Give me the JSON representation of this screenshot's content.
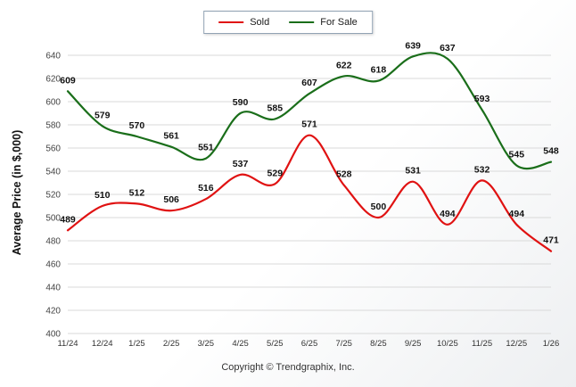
{
  "chart_data": {
    "type": "line",
    "title": "",
    "ylabel": "Average Price (in $,000)",
    "categories": [
      "11/24",
      "12/24",
      "1/25",
      "2/25",
      "3/25",
      "4/25",
      "5/25",
      "6/25",
      "7/25",
      "8/25",
      "9/25",
      "10/25",
      "11/25",
      "12/25",
      "1/26"
    ],
    "series": [
      {
        "name": "Sold",
        "color": "#e01212",
        "values": [
          489,
          510,
          512,
          506,
          516,
          537,
          529,
          571,
          528,
          500,
          531,
          494,
          532,
          494,
          471
        ]
      },
      {
        "name": "For Sale",
        "color": "#1a6e1a",
        "values": [
          609,
          579,
          570,
          561,
          551,
          590,
          585,
          607,
          622,
          618,
          639,
          637,
          593,
          545,
          548
        ]
      }
    ],
    "ylim": [
      400,
      640
    ],
    "yticks": [
      400,
      420,
      440,
      460,
      480,
      500,
      520,
      540,
      560,
      580,
      600,
      620,
      640
    ],
    "grid": true,
    "legend_position": "top",
    "line_smoothing": true
  },
  "footer": {
    "copyright": "Copyright © Trendgraphix, Inc."
  }
}
